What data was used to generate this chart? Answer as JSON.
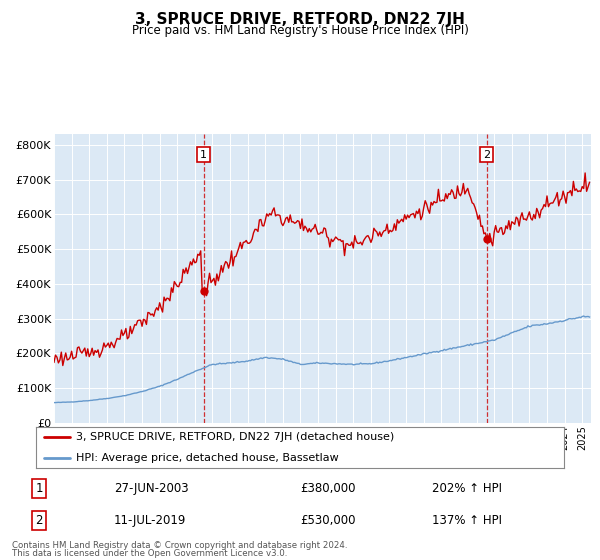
{
  "title": "3, SPRUCE DRIVE, RETFORD, DN22 7JH",
  "subtitle": "Price paid vs. HM Land Registry's House Price Index (HPI)",
  "background_color": "#ffffff",
  "plot_bg_color": "#dce9f5",
  "ylim": [
    0,
    830000
  ],
  "yticks": [
    0,
    100000,
    200000,
    300000,
    400000,
    500000,
    600000,
    700000,
    800000
  ],
  "ytick_labels": [
    "£0",
    "£100K",
    "£200K",
    "£300K",
    "£400K",
    "£500K",
    "£600K",
    "£700K",
    "£800K"
  ],
  "hpi_color": "#6699cc",
  "price_color": "#cc0000",
  "sale1_x": 2003.5,
  "sale1_y": 380000,
  "sale2_x": 2019.58,
  "sale2_y": 530000,
  "legend_entry1": "3, SPRUCE DRIVE, RETFORD, DN22 7JH (detached house)",
  "legend_entry2": "HPI: Average price, detached house, Bassetlaw",
  "footer1": "Contains HM Land Registry data © Crown copyright and database right 2024.",
  "footer2": "This data is licensed under the Open Government Licence v3.0.",
  "xlim_start": 1995,
  "xlim_end": 2025.5
}
